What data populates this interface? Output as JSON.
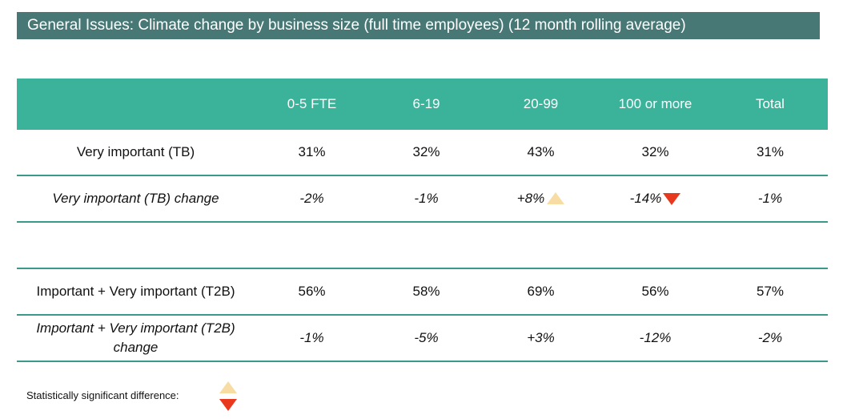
{
  "title": "General Issues: Climate change by business size (full time employees) (12 month rolling average)",
  "columns": [
    "",
    "0-5 FTE",
    "6-19",
    "20-99",
    "100 or more",
    "Total"
  ],
  "rows": [
    {
      "label": "Very important (TB)",
      "values": [
        "31%",
        "32%",
        "43%",
        "32%",
        "31%"
      ]
    },
    {
      "label": "Very important (TB) change",
      "values": [
        "-2%",
        "-1%",
        "+8%",
        "-14%",
        "-1%"
      ]
    },
    {
      "label": "Important + Very important (T2B)",
      "values": [
        "56%",
        "58%",
        "69%",
        "56%",
        "57%"
      ]
    },
    {
      "label": "Important + Very important (T2B) change",
      "values": [
        "-1%",
        "-5%",
        "+3%",
        "-12%",
        "-2%"
      ]
    }
  ],
  "significance_markers": {
    "up_icon": "triangle-up-icon",
    "down_icon": "triangle-down-icon",
    "up_color": "#f7dda4",
    "down_color": "#e8391f"
  },
  "legend": {
    "label": "Statistically significant difference:"
  }
}
